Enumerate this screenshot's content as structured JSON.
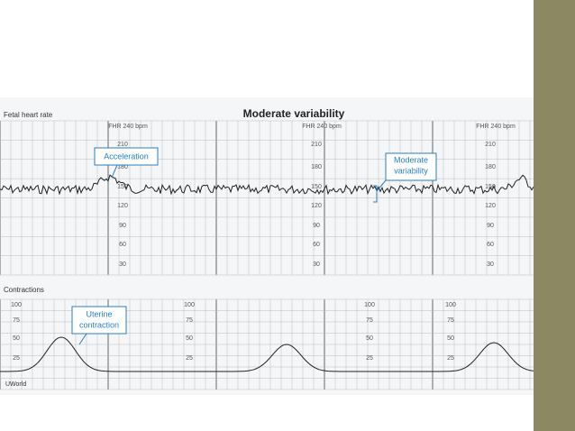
{
  "header": {
    "label": "Fetal heart rate",
    "title": "Moderate variability"
  },
  "fhr_panel": {
    "scale_title": "FHR 240 bpm",
    "scale": [
      "210",
      "180",
      "150",
      "120",
      "90",
      "60",
      "30"
    ]
  },
  "annotations": {
    "acceleration": "Acceleration",
    "variability": [
      "Moderate",
      "variability"
    ],
    "contraction": [
      "Uterine",
      "contraction"
    ]
  },
  "contraction_panel": {
    "label": "Contractions",
    "scale": [
      "100",
      "75",
      "50",
      "25"
    ]
  },
  "footer": {
    "brand": "UWorld"
  }
}
